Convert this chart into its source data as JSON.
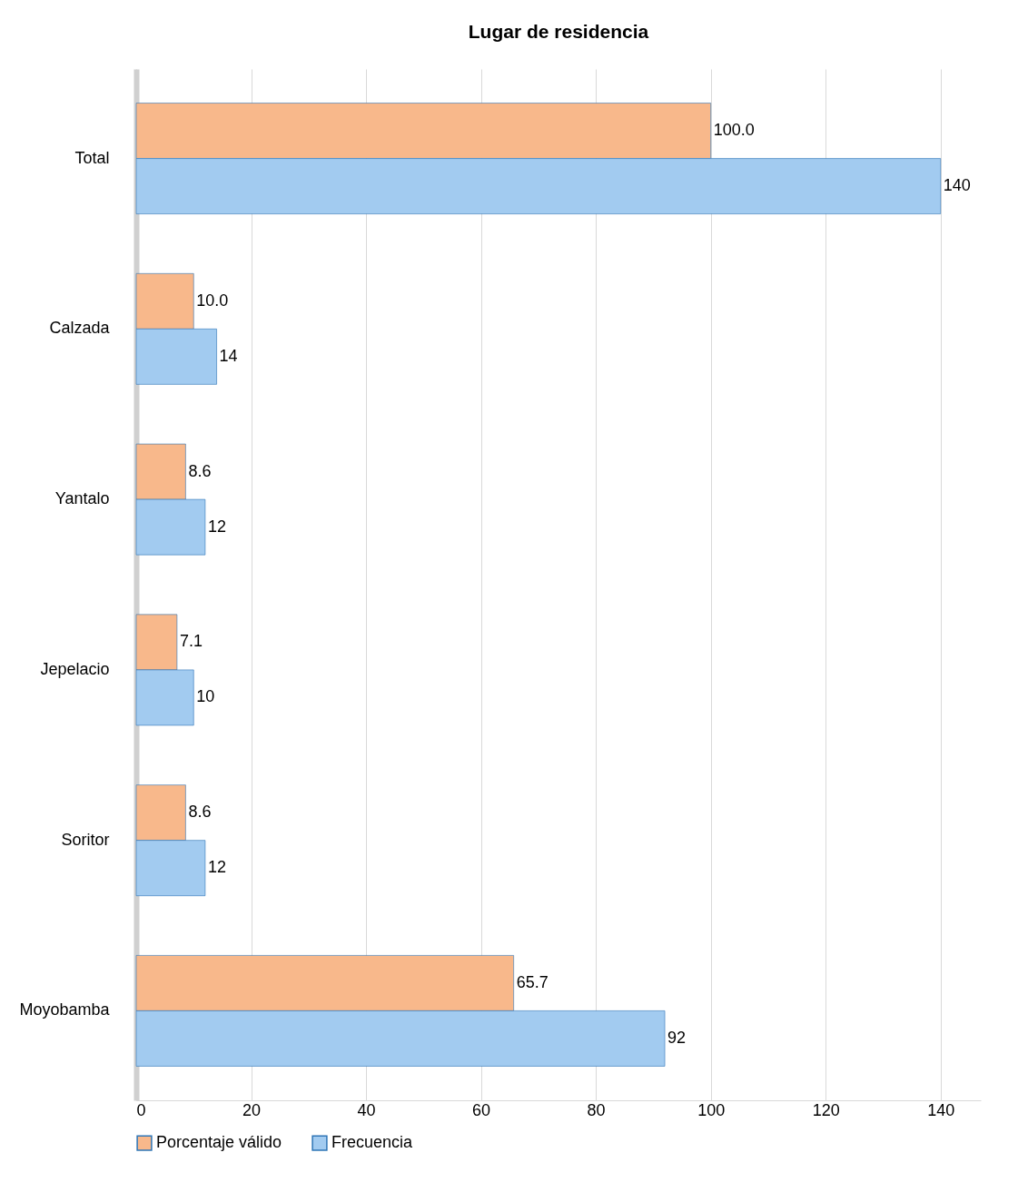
{
  "chart_data": {
    "type": "bar",
    "orientation": "horizontal",
    "title": "Lugar de residencia",
    "categories": [
      "Total",
      "Calzada",
      "Yantalo",
      "Jepelacio",
      "Soritor",
      "Moyobamba"
    ],
    "series": [
      {
        "name": "Porcentaje válido",
        "color": "#f8b88b",
        "values": [
          100.0,
          10.0,
          8.6,
          7.1,
          8.6,
          65.7
        ],
        "value_labels": [
          "100.0",
          "10.0",
          "8.6",
          "7.1",
          "8.6",
          "65.7"
        ]
      },
      {
        "name": "Frecuencia",
        "color": "#a2cbf0",
        "values": [
          140,
          14,
          12,
          10,
          12,
          92
        ],
        "value_labels": [
          "140",
          "14",
          "12",
          "10",
          "12",
          "92"
        ]
      }
    ],
    "xlim": [
      0,
      147
    ],
    "xticks": [
      0,
      20,
      40,
      60,
      80,
      100,
      120,
      140
    ],
    "grid": "x",
    "legend": "bottom"
  }
}
